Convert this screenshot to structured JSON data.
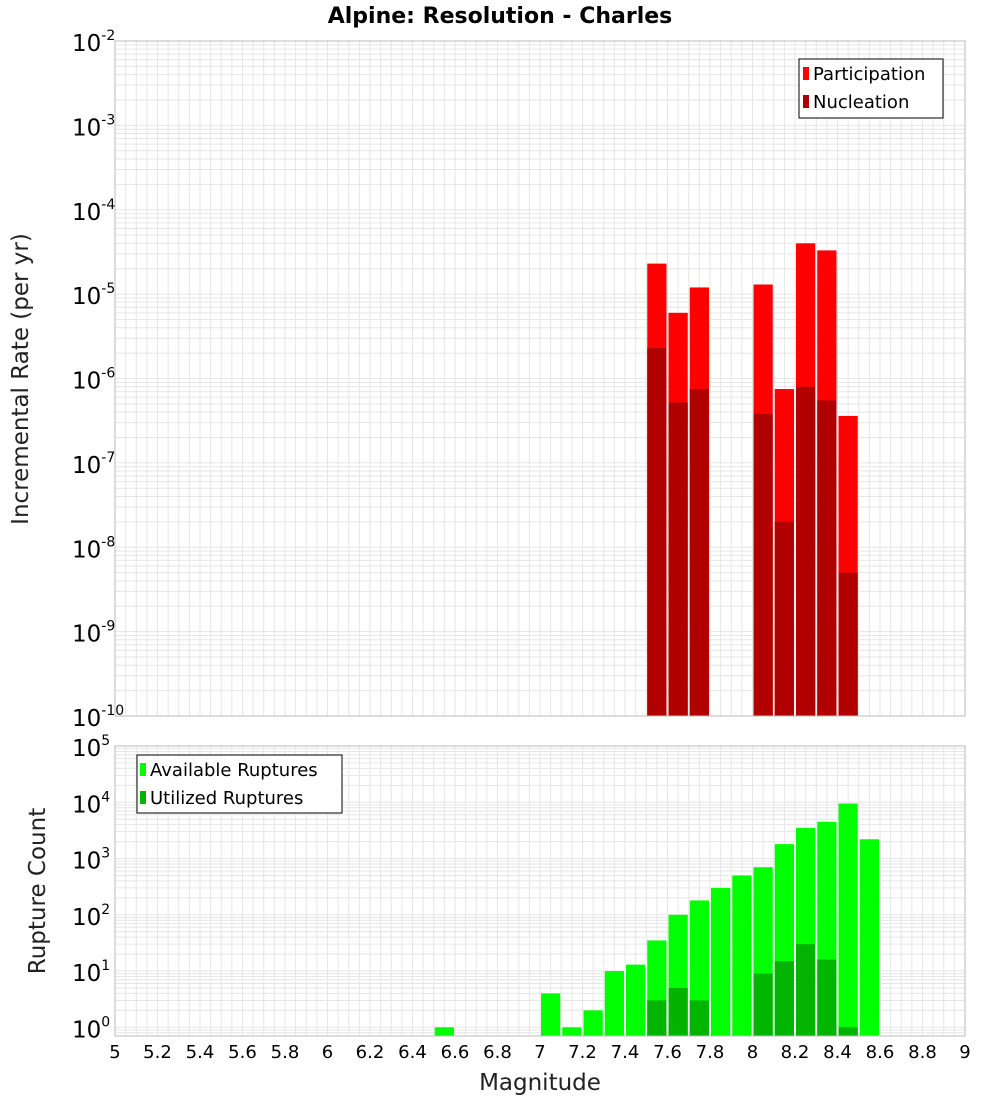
{
  "title": "Alpine: Resolution - Charles",
  "xlabel": "Magnitude",
  "x_ticks": [
    "5",
    "5.2",
    "5.4",
    "5.6",
    "5.8",
    "6",
    "6.2",
    "6.4",
    "6.6",
    "6.8",
    "7",
    "7.2",
    "7.4",
    "7.6",
    "7.8",
    "8",
    "8.2",
    "8.4",
    "8.6",
    "8.8",
    "9"
  ],
  "top_y_ticks": [
    {
      "base": "10",
      "exp": "-2"
    },
    {
      "base": "10",
      "exp": "-3"
    },
    {
      "base": "10",
      "exp": "-4"
    },
    {
      "base": "10",
      "exp": "-5"
    },
    {
      "base": "10",
      "exp": "-6"
    },
    {
      "base": "10",
      "exp": "-7"
    },
    {
      "base": "10",
      "exp": "-8"
    },
    {
      "base": "10",
      "exp": "-9"
    },
    {
      "base": "10",
      "exp": "-10"
    }
  ],
  "bottom_y_ticks": [
    {
      "base": "10",
      "exp": "5"
    },
    {
      "base": "10",
      "exp": "4"
    },
    {
      "base": "10",
      "exp": "3"
    },
    {
      "base": "10",
      "exp": "2"
    },
    {
      "base": "10",
      "exp": "1"
    },
    {
      "base": "10",
      "exp": "0"
    }
  ],
  "colors": {
    "participation": "#ff0000",
    "nucleation": "#b00000",
    "available": "#00ff00",
    "utilized": "#00b400",
    "grid": "#e6e6e6",
    "frame": "#bbbbbb"
  },
  "chart_data": [
    {
      "type": "bar",
      "title": "Alpine: Resolution - Charles",
      "xlabel": "Magnitude",
      "ylabel": "Incremental Rate (per yr)",
      "xlim": [
        5,
        9
      ],
      "ylim": [
        1e-10,
        0.01
      ],
      "yscale": "log",
      "grid": true,
      "legend_position": "top-right",
      "bin_width": 0.1,
      "series": [
        {
          "name": "Participation",
          "x": [
            7.55,
            7.65,
            7.75,
            8.05,
            8.15,
            8.25,
            8.35,
            8.45
          ],
          "values": [
            2.3e-05,
            6e-06,
            1.2e-05,
            1.3e-05,
            7.5e-07,
            4e-05,
            3.3e-05,
            3.6e-07
          ]
        },
        {
          "name": "Nucleation",
          "x": [
            7.55,
            7.65,
            7.75,
            8.05,
            8.15,
            8.25,
            8.35,
            8.45
          ],
          "values": [
            2.3e-06,
            5.2e-07,
            7.5e-07,
            3.8e-07,
            2e-08,
            8e-07,
            5.5e-07,
            5e-09
          ]
        }
      ]
    },
    {
      "type": "bar",
      "xlabel": "Magnitude",
      "ylabel": "Rupture Count",
      "xlim": [
        5,
        9
      ],
      "ylim": [
        0.7,
        100000.0
      ],
      "yscale": "log",
      "grid": true,
      "legend_position": "top-left",
      "bin_width": 0.1,
      "series": [
        {
          "name": "Available Ruptures",
          "x": [
            6.55,
            7.05,
            7.15,
            7.25,
            7.35,
            7.45,
            7.55,
            7.65,
            7.75,
            7.85,
            7.95,
            8.05,
            8.15,
            8.25,
            8.35,
            8.45,
            8.55
          ],
          "values": [
            1,
            4,
            1,
            2,
            10,
            13,
            35,
            100,
            180,
            300,
            500,
            700,
            1800,
            3500,
            4500,
            9500,
            2200
          ]
        },
        {
          "name": "Utilized Ruptures",
          "x": [
            7.55,
            7.65,
            7.75,
            8.05,
            8.15,
            8.25,
            8.35,
            8.45
          ],
          "values": [
            3,
            5,
            3,
            9,
            15,
            30,
            16,
            1
          ]
        }
      ]
    }
  ]
}
